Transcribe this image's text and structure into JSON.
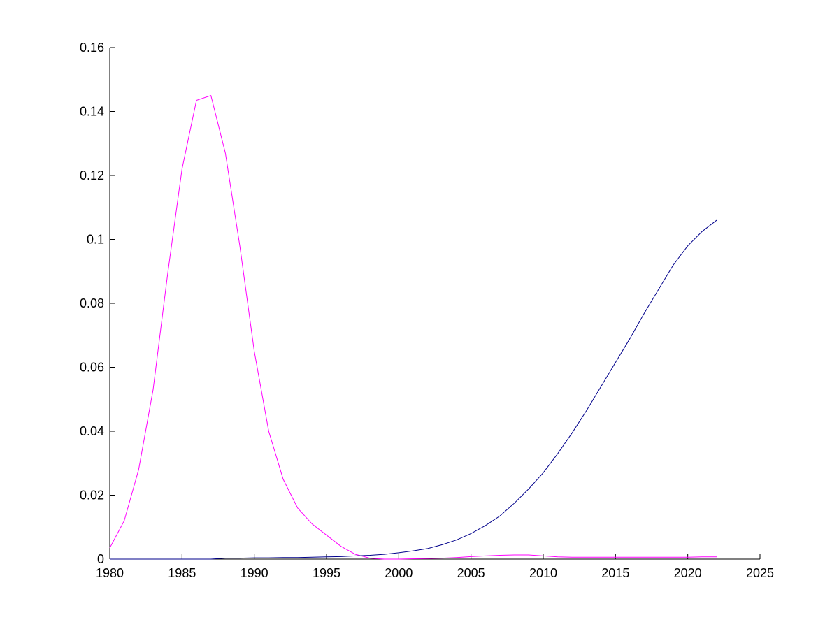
{
  "chart_data": {
    "type": "line",
    "title": "",
    "xlabel": "",
    "ylabel": "",
    "xlim": [
      1980,
      2025
    ],
    "ylim": [
      0,
      0.16
    ],
    "xticks": [
      1980,
      1985,
      1990,
      1995,
      2000,
      2005,
      2010,
      2015,
      2020,
      2025
    ],
    "xtick_labels": [
      "1980",
      "1985",
      "1990",
      "1995",
      "2000",
      "2005",
      "2010",
      "2015",
      "2020",
      "2025"
    ],
    "yticks": [
      0,
      0.02,
      0.04,
      0.06,
      0.08,
      0.1,
      0.12,
      0.14,
      0.16
    ],
    "ytick_labels": [
      "0",
      "0.02",
      "0.04",
      "0.06",
      "0.08",
      "0.1",
      "0.12",
      "0.14",
      "0.16"
    ],
    "grid": false,
    "legend": "none",
    "series": [
      {
        "color": "#ff00ff",
        "x": [
          1980,
          1981,
          1982,
          1983,
          1984,
          1985,
          1986,
          1987,
          1988,
          1989,
          1990,
          1991,
          1992,
          1993,
          1994,
          1995,
          1996,
          1997,
          1998,
          1999,
          2000,
          2001,
          2002,
          2003,
          2004,
          2005,
          2006,
          2007,
          2008,
          2009,
          2010,
          2011,
          2012,
          2013,
          2014,
          2015,
          2016,
          2017,
          2018,
          2019,
          2020,
          2021,
          2022
        ],
        "y": [
          0.0035,
          0.012,
          0.028,
          0.053,
          0.089,
          0.122,
          0.1435,
          0.145,
          0.127,
          0.098,
          0.065,
          0.04,
          0.025,
          0.016,
          0.011,
          0.0075,
          0.004,
          0.0015,
          0.0003,
          0.0,
          0.0,
          0.0001,
          0.0002,
          0.0003,
          0.0005,
          0.0008,
          0.001,
          0.0012,
          0.0013,
          0.0013,
          0.001,
          0.0007,
          0.0006,
          0.0006,
          0.0006,
          0.0006,
          0.0006,
          0.0006,
          0.0006,
          0.0006,
          0.0006,
          0.0007,
          0.0007
        ]
      },
      {
        "color": "#00008b",
        "x": [
          1980,
          1981,
          1982,
          1983,
          1984,
          1985,
          1986,
          1987,
          1988,
          1989,
          1990,
          1991,
          1992,
          1993,
          1994,
          1995,
          1996,
          1997,
          1998,
          1999,
          2000,
          2001,
          2002,
          2003,
          2004,
          2005,
          2006,
          2007,
          2008,
          2009,
          2010,
          2011,
          2012,
          2013,
          2014,
          2015,
          2016,
          2017,
          2018,
          2019,
          2020,
          2021,
          2022
        ],
        "y": [
          0.0,
          0.0,
          0.0,
          0.0,
          0.0,
          0.0,
          0.0,
          0.0,
          0.0003,
          0.0003,
          0.0004,
          0.0004,
          0.0005,
          0.0005,
          0.0006,
          0.0007,
          0.0008,
          0.001,
          0.0012,
          0.0015,
          0.002,
          0.0026,
          0.0033,
          0.0045,
          0.006,
          0.008,
          0.0105,
          0.0135,
          0.0175,
          0.022,
          0.027,
          0.033,
          0.0395,
          0.0465,
          0.054,
          0.0615,
          0.069,
          0.077,
          0.0845,
          0.092,
          0.098,
          0.1025,
          0.106
        ]
      }
    ]
  }
}
